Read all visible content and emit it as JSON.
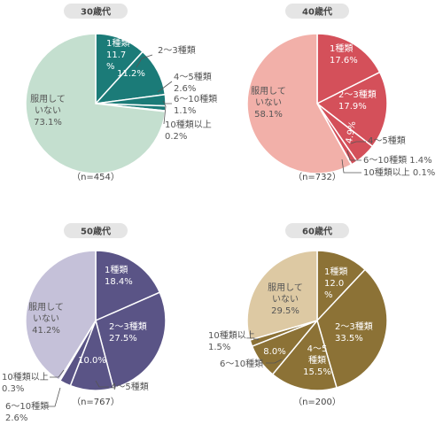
{
  "chart_data": [
    {
      "type": "pie",
      "title": "30歳代",
      "n_label": "（n=454）",
      "start_angle_deg": 0,
      "direction": "clockwise",
      "slices": [
        {
          "name": "1種類",
          "value": 11.7,
          "color": "#1b7b78",
          "label_lines": [
            "1種類",
            "11.7",
            "%"
          ],
          "label_pos": "inside"
        },
        {
          "name": "2〜3種類",
          "value": 11.2,
          "color": "#1b7b78",
          "label_lines": [
            "2〜3種類"
          ],
          "value_label": "11.2%",
          "label_pos": "split"
        },
        {
          "name": "4〜5種類",
          "value": 2.6,
          "color": "#1b7b78",
          "label_lines": [
            "4〜5種類",
            "2.6%"
          ],
          "label_pos": "outside"
        },
        {
          "name": "6〜10種類",
          "value": 1.1,
          "color": "#1b7b78",
          "label_lines": [
            "6〜10種類",
            "1.1%"
          ],
          "label_pos": "outside"
        },
        {
          "name": "10種類以上",
          "value": 0.2,
          "color": "#1b7b78",
          "label_lines": [
            "10種類以上",
            "0.2%"
          ],
          "label_pos": "outside"
        },
        {
          "name": "服用していない",
          "value": 73.1,
          "color": "#c4dfcf",
          "label_lines": [
            "服用して",
            "いない",
            "73.1%"
          ],
          "label_pos": "inside-dark"
        }
      ]
    },
    {
      "type": "pie",
      "title": "40歳代",
      "n_label": "（n=732）",
      "start_angle_deg": 0,
      "direction": "clockwise",
      "slices": [
        {
          "name": "1種類",
          "value": 17.6,
          "color": "#d4505a",
          "label_lines": [
            "1種類",
            "17.6%"
          ],
          "label_pos": "inside"
        },
        {
          "name": "2〜3種類",
          "value": 17.9,
          "color": "#d4505a",
          "label_lines": [
            "2〜3種類",
            "17.9%"
          ],
          "label_pos": "inside"
        },
        {
          "name": "4〜5種類",
          "value": 4.9,
          "color": "#d4505a",
          "label_lines": [
            "4〜5種類"
          ],
          "value_label": "4.9%",
          "label_pos": "split"
        },
        {
          "name": "6〜10種類",
          "value": 1.4,
          "color": "#d4505a",
          "label_lines": [
            "6〜10種類 1.4%"
          ],
          "label_pos": "outside"
        },
        {
          "name": "10種類以上",
          "value": 0.1,
          "color": "#d4505a",
          "label_lines": [
            "10種類以上 0.1%"
          ],
          "label_pos": "outside"
        },
        {
          "name": "服用していない",
          "value": 58.1,
          "color": "#f2b0a9",
          "label_lines": [
            "服用して",
            "いない",
            "58.1%"
          ],
          "label_pos": "inside-dark"
        }
      ]
    },
    {
      "type": "pie",
      "title": "50歳代",
      "n_label": "（n=767）",
      "start_angle_deg": 0,
      "direction": "clockwise",
      "slices": [
        {
          "name": "1種類",
          "value": 18.4,
          "color": "#5a5486",
          "label_lines": [
            "1種類",
            "18.4%"
          ],
          "label_pos": "inside"
        },
        {
          "name": "2〜3種類",
          "value": 27.5,
          "color": "#5a5486",
          "label_lines": [
            "2〜3種類",
            "27.5%"
          ],
          "label_pos": "inside"
        },
        {
          "name": "4〜5種類",
          "value": 10.0,
          "color": "#5a5486",
          "label_lines": [
            "4〜5種類"
          ],
          "value_label": "10.0%",
          "label_pos": "split"
        },
        {
          "name": "6〜10種類",
          "value": 2.6,
          "color": "#5a5486",
          "label_lines": [
            "6〜10種類",
            "2.6%"
          ],
          "label_pos": "outside"
        },
        {
          "name": "10種類以上",
          "value": 0.3,
          "color": "#5a5486",
          "label_lines": [
            "10種類以上",
            "0.3%"
          ],
          "label_pos": "outside"
        },
        {
          "name": "服用していない",
          "value": 41.2,
          "color": "#c5c1d9",
          "label_lines": [
            "服用して",
            "いない",
            "41.2%"
          ],
          "label_pos": "inside-dark"
        }
      ]
    },
    {
      "type": "pie",
      "title": "60歳代",
      "n_label": "（n=200）",
      "start_angle_deg": 0,
      "direction": "clockwise",
      "slices": [
        {
          "name": "1種類",
          "value": 12.0,
          "color": "#8c7236",
          "label_lines": [
            "1種類",
            "12.0",
            "%"
          ],
          "label_pos": "inside"
        },
        {
          "name": "2〜3種類",
          "value": 33.5,
          "color": "#8c7236",
          "label_lines": [
            "2〜3種類",
            "33.5%"
          ],
          "label_pos": "inside"
        },
        {
          "name": "4〜5種類",
          "value": 15.5,
          "color": "#8c7236",
          "label_lines": [
            "4〜5",
            "種類",
            "15.5%"
          ],
          "label_pos": "inside"
        },
        {
          "name": "6〜10種類",
          "value": 8.0,
          "color": "#8c7236",
          "label_lines": [
            "6〜10種類"
          ],
          "value_label": "8.0%",
          "label_pos": "split"
        },
        {
          "name": "10種類以上",
          "value": 1.5,
          "color": "#8c7236",
          "label_lines": [
            "10種類以上",
            "1.5%"
          ],
          "label_pos": "outside"
        },
        {
          "name": "服用していない",
          "value": 29.5,
          "color": "#ddc9a3",
          "label_lines": [
            "服用して",
            "いない",
            "29.5%"
          ],
          "label_pos": "inside-dark"
        }
      ]
    }
  ]
}
